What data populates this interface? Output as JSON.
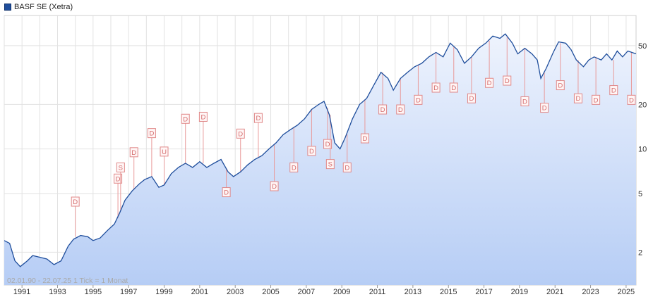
{
  "legend": {
    "label": "BASF SE (Xetra)",
    "color": "#1f4e9c"
  },
  "footnote": "02.01.90 - 22.07.25   1 Tick = 1 Monat",
  "chart_data": {
    "type": "area",
    "scale": "log",
    "title": "",
    "xlabel": "",
    "ylabel": "",
    "xlim": [
      1990.0,
      2025.56
    ],
    "ylim": [
      1.2,
      80
    ],
    "x_ticks": [
      "1991",
      "1993",
      "1995",
      "1997",
      "1999",
      "2001",
      "2003",
      "2005",
      "2007",
      "2009",
      "2011",
      "2013",
      "2015",
      "2017",
      "2019",
      "2021",
      "2023",
      "2025"
    ],
    "y_ticks": [
      2,
      5,
      10,
      20,
      50
    ],
    "grid": true,
    "legend_position": "top-left",
    "series": [
      {
        "name": "BASF SE (Xetra)",
        "color": "#1f4e9c",
        "points": [
          [
            1990.0,
            2.4
          ],
          [
            1990.3,
            2.3
          ],
          [
            1990.6,
            1.75
          ],
          [
            1990.9,
            1.6
          ],
          [
            1991.3,
            1.75
          ],
          [
            1991.6,
            1.9
          ],
          [
            1992.0,
            1.85
          ],
          [
            1992.4,
            1.8
          ],
          [
            1992.8,
            1.65
          ],
          [
            1993.2,
            1.75
          ],
          [
            1993.6,
            2.2
          ],
          [
            1993.9,
            2.45
          ],
          [
            1994.3,
            2.6
          ],
          [
            1994.7,
            2.55
          ],
          [
            1995.0,
            2.4
          ],
          [
            1995.4,
            2.5
          ],
          [
            1995.8,
            2.8
          ],
          [
            1996.2,
            3.1
          ],
          [
            1996.5,
            3.7
          ],
          [
            1996.8,
            4.5
          ],
          [
            1997.2,
            5.2
          ],
          [
            1997.6,
            5.8
          ],
          [
            1997.9,
            6.2
          ],
          [
            1998.3,
            6.5
          ],
          [
            1998.7,
            5.5
          ],
          [
            1999.0,
            5.7
          ],
          [
            1999.4,
            6.8
          ],
          [
            1999.8,
            7.5
          ],
          [
            2000.2,
            8.0
          ],
          [
            2000.6,
            7.5
          ],
          [
            2001.0,
            8.2
          ],
          [
            2001.4,
            7.5
          ],
          [
            2001.8,
            8.0
          ],
          [
            2002.2,
            8.5
          ],
          [
            2002.6,
            7.0
          ],
          [
            2002.9,
            6.5
          ],
          [
            2003.3,
            7.0
          ],
          [
            2003.7,
            7.8
          ],
          [
            2004.1,
            8.5
          ],
          [
            2004.5,
            9.0
          ],
          [
            2004.9,
            10.0
          ],
          [
            2005.3,
            11.0
          ],
          [
            2005.7,
            12.5
          ],
          [
            2006.1,
            13.5
          ],
          [
            2006.5,
            14.5
          ],
          [
            2006.9,
            16.0
          ],
          [
            2007.3,
            18.5
          ],
          [
            2007.7,
            20.0
          ],
          [
            2008.0,
            21.0
          ],
          [
            2008.3,
            17.0
          ],
          [
            2008.6,
            11.0
          ],
          [
            2008.9,
            10.0
          ],
          [
            2009.2,
            12.0
          ],
          [
            2009.6,
            16.0
          ],
          [
            2010.0,
            20.0
          ],
          [
            2010.4,
            22.0
          ],
          [
            2010.8,
            27.0
          ],
          [
            2011.2,
            33.0
          ],
          [
            2011.6,
            30.0
          ],
          [
            2011.9,
            25.0
          ],
          [
            2012.3,
            30.0
          ],
          [
            2012.7,
            33.0
          ],
          [
            2013.1,
            36.0
          ],
          [
            2013.5,
            38.0
          ],
          [
            2013.9,
            42.0
          ],
          [
            2014.3,
            45.0
          ],
          [
            2014.7,
            42.0
          ],
          [
            2015.1,
            52.0
          ],
          [
            2015.5,
            47.0
          ],
          [
            2015.9,
            38.0
          ],
          [
            2016.3,
            42.0
          ],
          [
            2016.7,
            48.0
          ],
          [
            2017.1,
            52.0
          ],
          [
            2017.5,
            58.0
          ],
          [
            2017.9,
            56.0
          ],
          [
            2018.2,
            60.0
          ],
          [
            2018.6,
            52.0
          ],
          [
            2018.9,
            44.0
          ],
          [
            2019.3,
            48.0
          ],
          [
            2019.7,
            44.0
          ],
          [
            2020.0,
            40.0
          ],
          [
            2020.2,
            30.0
          ],
          [
            2020.5,
            35.0
          ],
          [
            2020.9,
            45.0
          ],
          [
            2021.2,
            53.0
          ],
          [
            2021.6,
            52.0
          ],
          [
            2021.9,
            47.0
          ],
          [
            2022.2,
            40.0
          ],
          [
            2022.6,
            36.0
          ],
          [
            2022.9,
            40.0
          ],
          [
            2023.2,
            42.0
          ],
          [
            2023.6,
            40.0
          ],
          [
            2023.9,
            44.0
          ],
          [
            2024.2,
            40.0
          ],
          [
            2024.5,
            46.0
          ],
          [
            2024.8,
            42.0
          ],
          [
            2025.1,
            46.0
          ],
          [
            2025.56,
            44.0
          ]
        ]
      }
    ],
    "events": [
      {
        "x": 1994.0,
        "y": 2.55,
        "label": "D",
        "box": 4.4
      },
      {
        "x": 1996.4,
        "y": 3.4,
        "label": "D",
        "box": 6.3
      },
      {
        "x": 1996.55,
        "y": 3.8,
        "label": "S",
        "box": 7.5
      },
      {
        "x": 1997.3,
        "y": 5.3,
        "label": "D",
        "box": 9.5
      },
      {
        "x": 1998.3,
        "y": 6.5,
        "label": "D",
        "box": 12.8
      },
      {
        "x": 1999.0,
        "y": 5.7,
        "label": "U",
        "box": 9.6
      },
      {
        "x": 2000.2,
        "y": 7.9,
        "label": "D",
        "box": 16.0
      },
      {
        "x": 2001.2,
        "y": 8.0,
        "label": "D",
        "box": 16.5
      },
      {
        "x": 2002.5,
        "y": 7.3,
        "label": "D",
        "box": 5.1
      },
      {
        "x": 2003.3,
        "y": 7.0,
        "label": "D",
        "box": 12.7
      },
      {
        "x": 2004.3,
        "y": 8.8,
        "label": "D",
        "box": 16.2
      },
      {
        "x": 2005.2,
        "y": 10.8,
        "label": "D",
        "box": 5.6
      },
      {
        "x": 2006.3,
        "y": 14.0,
        "label": "D",
        "box": 7.5
      },
      {
        "x": 2007.3,
        "y": 18.5,
        "label": "D",
        "box": 9.7
      },
      {
        "x": 2008.2,
        "y": 19.0,
        "label": "D",
        "box": 10.8
      },
      {
        "x": 2008.35,
        "y": 17.0,
        "label": "S",
        "box": 7.9
      },
      {
        "x": 2009.3,
        "y": 12.5,
        "label": "D",
        "box": 7.5
      },
      {
        "x": 2010.3,
        "y": 21.5,
        "label": "D",
        "box": 11.8
      },
      {
        "x": 2011.3,
        "y": 33.0,
        "label": "D",
        "box": 18.5
      },
      {
        "x": 2012.3,
        "y": 30.0,
        "label": "D",
        "box": 18.5
      },
      {
        "x": 2013.3,
        "y": 37.0,
        "label": "D",
        "box": 21.5
      },
      {
        "x": 2014.3,
        "y": 45.0,
        "label": "D",
        "box": 26.0
      },
      {
        "x": 2015.3,
        "y": 49.0,
        "label": "D",
        "box": 26.0
      },
      {
        "x": 2016.3,
        "y": 42.0,
        "label": "D",
        "box": 22.0
      },
      {
        "x": 2017.3,
        "y": 54.0,
        "label": "D",
        "box": 28.0
      },
      {
        "x": 2018.3,
        "y": 57.0,
        "label": "D",
        "box": 29.0
      },
      {
        "x": 2019.3,
        "y": 48.0,
        "label": "D",
        "box": 21.0
      },
      {
        "x": 2020.4,
        "y": 33.0,
        "label": "D",
        "box": 19.0
      },
      {
        "x": 2021.3,
        "y": 52.0,
        "label": "D",
        "box": 27.0
      },
      {
        "x": 2022.3,
        "y": 40.0,
        "label": "D",
        "box": 22.0
      },
      {
        "x": 2023.3,
        "y": 42.0,
        "label": "D",
        "box": 21.5
      },
      {
        "x": 2024.3,
        "y": 40.0,
        "label": "D",
        "box": 25.0
      },
      {
        "x": 2025.3,
        "y": 45.0,
        "label": "D",
        "box": 21.5
      }
    ]
  }
}
